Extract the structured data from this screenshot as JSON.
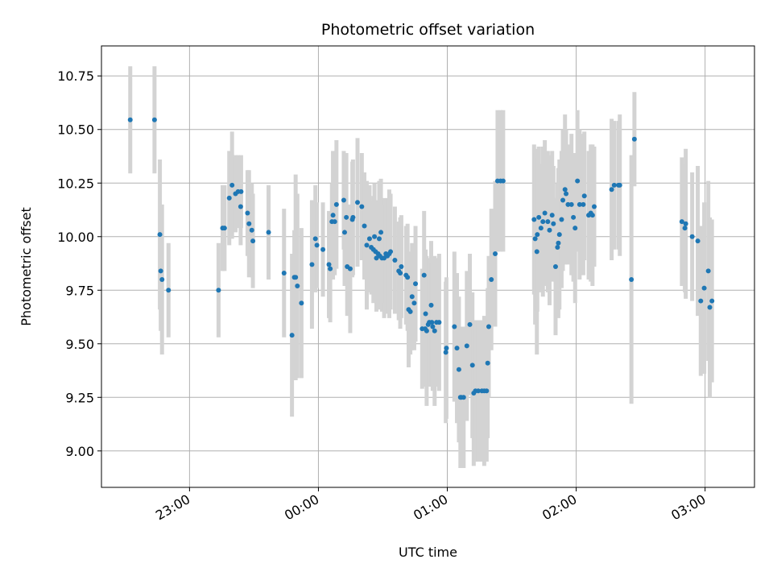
{
  "chart_data": {
    "type": "scatter",
    "title": "Photometric offset variation",
    "xlabel": "UTC time",
    "ylabel": "Photometric offset",
    "x_ticks": [
      "23:00",
      "00:00",
      "01:00",
      "02:00",
      "03:00"
    ],
    "x_tick_values": [
      -60,
      0,
      60,
      120,
      180
    ],
    "y_ticks": [
      9.0,
      9.25,
      9.5,
      9.75,
      10.0,
      10.25,
      10.5,
      10.75
    ],
    "y_tick_labels": [
      "9.00",
      "9.25",
      "9.50",
      "9.75",
      "10.00",
      "10.25",
      "10.50",
      "10.75"
    ],
    "xlim": [
      -101,
      203
    ],
    "ylim": [
      8.83,
      10.89
    ],
    "grid": true,
    "marker_color": "#1f77b4",
    "errorbar_color": "#d3d3d3",
    "x_unit_note": "",
    "points": [
      [
        -87.6,
        10.545,
        0.25
      ],
      [
        -76.3,
        10.545,
        0.25
      ],
      [
        -73.8,
        10.01,
        0.35
      ],
      [
        -73.4,
        9.84,
        0.28
      ],
      [
        -72.8,
        9.8,
        0.35
      ],
      [
        -69.8,
        9.75,
        0.22
      ],
      [
        -46.5,
        9.75,
        0.22
      ],
      [
        -44.6,
        10.04,
        0.2
      ],
      [
        -43.7,
        10.04,
        0.2
      ],
      [
        -41.5,
        10.18,
        0.22
      ],
      [
        -40.2,
        10.24,
        0.25
      ],
      [
        -38.6,
        10.2,
        0.18
      ],
      [
        -37.4,
        10.21,
        0.17
      ],
      [
        -36.2,
        10.14,
        0.18
      ],
      [
        -36.0,
        10.21,
        0.17
      ],
      [
        -33.0,
        10.11,
        0.2
      ],
      [
        -32.3,
        10.06,
        0.25
      ],
      [
        -31.0,
        10.03,
        0.22
      ],
      [
        -30.5,
        9.98,
        0.22
      ],
      [
        -23.2,
        10.02,
        0.22
      ],
      [
        -16.0,
        9.83,
        0.3
      ],
      [
        -12.3,
        9.54,
        0.38
      ],
      [
        -11.2,
        9.81,
        0.22
      ],
      [
        -10.6,
        9.81,
        0.48
      ],
      [
        -9.8,
        9.77,
        0.43
      ],
      [
        -7.9,
        9.69,
        0.35
      ],
      [
        -3.0,
        9.87,
        0.3
      ],
      [
        -1.4,
        9.99,
        0.25
      ],
      [
        -0.7,
        9.96,
        0.2
      ],
      [
        2.1,
        9.94,
        0.22
      ],
      [
        4.9,
        9.87,
        0.25
      ],
      [
        5.5,
        9.85,
        0.25
      ],
      [
        6.3,
        10.07,
        0.18
      ],
      [
        6.8,
        10.1,
        0.3
      ],
      [
        7.6,
        10.07,
        0.25
      ],
      [
        8.4,
        10.15,
        0.3
      ],
      [
        11.8,
        10.17,
        0.23
      ],
      [
        12.2,
        10.02,
        0.25
      ],
      [
        13.0,
        10.09,
        0.3
      ],
      [
        13.4,
        9.86,
        0.23
      ],
      [
        14.8,
        9.85,
        0.3
      ],
      [
        15.8,
        10.08,
        0.27
      ],
      [
        16.1,
        10.09,
        0.27
      ],
      [
        18.2,
        10.16,
        0.3
      ],
      [
        20.2,
        10.14,
        0.25
      ],
      [
        21.4,
        10.05,
        0.25
      ],
      [
        22.5,
        9.96,
        0.3
      ],
      [
        23.8,
        9.99,
        0.25
      ],
      [
        24.6,
        9.95,
        0.22
      ],
      [
        25.6,
        9.94,
        0.25
      ],
      [
        26.1,
        10.0,
        0.25
      ],
      [
        26.6,
        9.93,
        0.23
      ],
      [
        27.0,
        9.9,
        0.25
      ],
      [
        27.8,
        9.92,
        0.25
      ],
      [
        28.3,
        9.99,
        0.27
      ],
      [
        28.6,
        9.91,
        0.25
      ],
      [
        29.1,
        10.02,
        0.25
      ],
      [
        29.6,
        9.9,
        0.25
      ],
      [
        30.6,
        9.9,
        0.28
      ],
      [
        31.4,
        9.92,
        0.23
      ],
      [
        32.1,
        9.91,
        0.27
      ],
      [
        33.0,
        9.92,
        0.3
      ],
      [
        33.6,
        9.93,
        0.27
      ],
      [
        35.6,
        9.89,
        0.25
      ],
      [
        37.4,
        9.84,
        0.23
      ],
      [
        38.1,
        9.83,
        0.26
      ],
      [
        38.6,
        9.86,
        0.24
      ],
      [
        40.8,
        9.82,
        0.23
      ],
      [
        41.5,
        9.81,
        0.25
      ],
      [
        42.0,
        9.66,
        0.27
      ],
      [
        42.8,
        9.65,
        0.2
      ],
      [
        43.6,
        9.72,
        0.25
      ],
      [
        44.6,
        9.69,
        0.22
      ],
      [
        45.2,
        9.78,
        0.27
      ],
      [
        48.3,
        9.57,
        0.28
      ],
      [
        49.2,
        9.82,
        0.3
      ],
      [
        49.7,
        9.57,
        0.27
      ],
      [
        49.9,
        9.64,
        0.3
      ],
      [
        50.4,
        9.56,
        0.35
      ],
      [
        51.1,
        9.59,
        0.28
      ],
      [
        51.6,
        9.6,
        0.3
      ],
      [
        52.5,
        9.68,
        0.3
      ],
      [
        52.8,
        9.6,
        0.28
      ],
      [
        53.2,
        9.58,
        0.3
      ],
      [
        54.1,
        9.56,
        0.35
      ],
      [
        55.0,
        9.6,
        0.3
      ],
      [
        56.2,
        9.6,
        0.32
      ],
      [
        59.3,
        9.46,
        0.33
      ],
      [
        59.6,
        9.48,
        0.33
      ],
      [
        63.3,
        9.58,
        0.35
      ],
      [
        64.5,
        9.48,
        0.35
      ],
      [
        65.4,
        9.38,
        0.34
      ],
      [
        66.1,
        9.25,
        0.33
      ],
      [
        66.5,
        9.25,
        0.33
      ],
      [
        67.6,
        9.25,
        0.33
      ],
      [
        69.1,
        9.49,
        0.35
      ],
      [
        70.5,
        9.59,
        0.33
      ],
      [
        71.7,
        9.4,
        0.34
      ],
      [
        72.3,
        9.27,
        0.34
      ],
      [
        73.1,
        9.28,
        0.33
      ],
      [
        74.4,
        9.28,
        0.33
      ],
      [
        76.1,
        9.28,
        0.33
      ],
      [
        77.2,
        9.28,
        0.35
      ],
      [
        78.3,
        9.28,
        0.33
      ],
      [
        78.8,
        9.41,
        0.35
      ],
      [
        79.3,
        9.58,
        0.33
      ],
      [
        80.5,
        9.8,
        0.33
      ],
      [
        82.3,
        9.92,
        0.34
      ],
      [
        83.4,
        10.26,
        0.33
      ],
      [
        84.8,
        10.26,
        0.33
      ],
      [
        86.0,
        10.26,
        0.33
      ],
      [
        100.4,
        10.08,
        0.35
      ],
      [
        100.9,
        9.99,
        0.4
      ],
      [
        101.7,
        9.93,
        0.48
      ],
      [
        101.9,
        10.01,
        0.36
      ],
      [
        102.6,
        10.09,
        0.33
      ],
      [
        103.6,
        10.04,
        0.3
      ],
      [
        104.5,
        10.07,
        0.35
      ],
      [
        105.4,
        10.11,
        0.34
      ],
      [
        106.8,
        10.07,
        0.33
      ],
      [
        107.6,
        10.03,
        0.35
      ],
      [
        108.8,
        10.1,
        0.3
      ],
      [
        109.4,
        10.06,
        0.27
      ],
      [
        110.4,
        9.86,
        0.32
      ],
      [
        111.3,
        9.95,
        0.3
      ],
      [
        111.7,
        9.97,
        0.35
      ],
      [
        112.2,
        10.01,
        0.35
      ],
      [
        113.2,
        10.08,
        0.32
      ],
      [
        113.8,
        10.17,
        0.33
      ],
      [
        114.8,
        10.22,
        0.35
      ],
      [
        115.3,
        10.2,
        0.3
      ],
      [
        116.2,
        10.15,
        0.28
      ],
      [
        117.8,
        10.15,
        0.33
      ],
      [
        118.7,
        10.09,
        0.3
      ],
      [
        119.5,
        10.04,
        0.35
      ],
      [
        120.6,
        10.26,
        0.33
      ],
      [
        121.6,
        10.15,
        0.35
      ],
      [
        123.3,
        10.15,
        0.33
      ],
      [
        123.8,
        10.19,
        0.3
      ],
      [
        125.8,
        10.1,
        0.3
      ],
      [
        126.8,
        10.11,
        0.32
      ],
      [
        127.6,
        10.1,
        0.33
      ],
      [
        128.4,
        10.14,
        0.28
      ],
      [
        136.5,
        10.22,
        0.33
      ],
      [
        137.7,
        10.24,
        0.3
      ],
      [
        139.7,
        10.24,
        0.3
      ],
      [
        140.3,
        10.24,
        0.33
      ],
      [
        145.7,
        9.8,
        0.58
      ],
      [
        147.1,
        10.455,
        0.22
      ],
      [
        169.2,
        10.07,
        0.3
      ],
      [
        170.6,
        10.04,
        0.3
      ],
      [
        171.0,
        10.06,
        0.35
      ],
      [
        174.0,
        10.0,
        0.3
      ],
      [
        176.6,
        9.98,
        0.35
      ],
      [
        178.0,
        9.7,
        0.35
      ],
      [
        179.6,
        9.76,
        0.4
      ],
      [
        181.5,
        9.84,
        0.42
      ],
      [
        182.2,
        9.67,
        0.42
      ],
      [
        183.2,
        9.7,
        0.38
      ]
    ]
  }
}
